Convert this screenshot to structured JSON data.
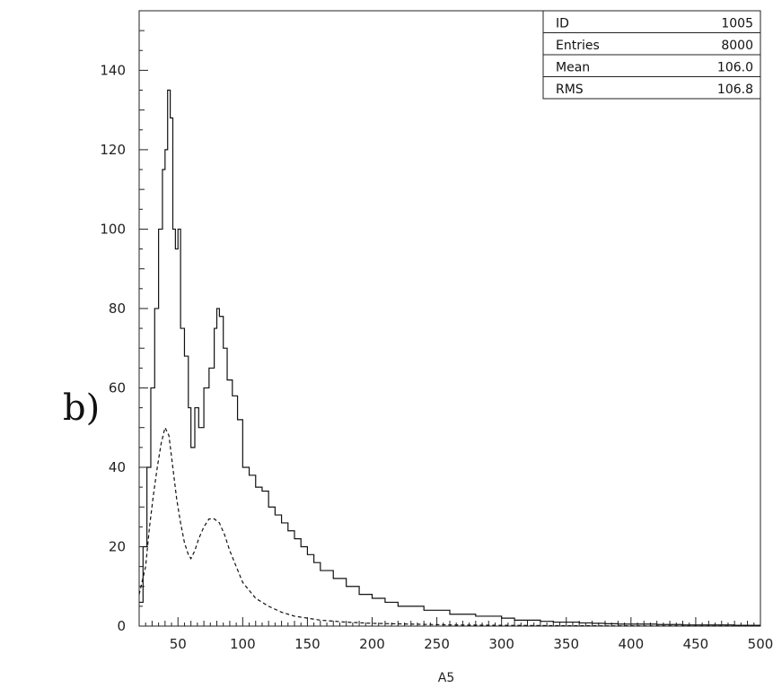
{
  "panel_label": "b)",
  "stats_box": [
    {
      "label": "ID",
      "value": "1005"
    },
    {
      "label": "Entries",
      "value": "8000"
    },
    {
      "label": "Mean",
      "value": "106.0"
    },
    {
      "label": "RMS",
      "value": "106.8"
    }
  ],
  "chart_data": {
    "type": "line",
    "title": "",
    "xlabel": "A5",
    "ylabel": "",
    "xlim": [
      20,
      500
    ],
    "ylim": [
      0,
      155
    ],
    "x_ticks": [
      50,
      100,
      150,
      200,
      250,
      300,
      350,
      400,
      450,
      500
    ],
    "y_ticks": [
      0,
      20,
      40,
      60,
      80,
      100,
      120,
      140
    ],
    "grid": false,
    "series": [
      {
        "style": "histogram-solid",
        "x": [
          20,
          23,
          26,
          29,
          32,
          35,
          38,
          40,
          42,
          44,
          46,
          48,
          50,
          52,
          55,
          58,
          60,
          63,
          66,
          70,
          74,
          78,
          80,
          82,
          85,
          88,
          92,
          96,
          100,
          105,
          110,
          115,
          120,
          125,
          130,
          135,
          140,
          145,
          150,
          155,
          160,
          170,
          180,
          190,
          200,
          210,
          220,
          230,
          240,
          250,
          260,
          270,
          280,
          290,
          300,
          310,
          320,
          330,
          340,
          350,
          360,
          370,
          380,
          390,
          400,
          420,
          440,
          460,
          480,
          500
        ],
        "y": [
          6,
          20,
          40,
          60,
          80,
          100,
          115,
          120,
          135,
          128,
          100,
          95,
          100,
          75,
          68,
          55,
          45,
          55,
          50,
          60,
          65,
          75,
          80,
          78,
          70,
          62,
          58,
          52,
          40,
          38,
          35,
          34,
          30,
          28,
          26,
          24,
          22,
          20,
          18,
          16,
          14,
          12,
          10,
          8,
          7,
          6,
          5,
          5,
          4,
          4,
          3,
          3,
          2.5,
          2.5,
          2,
          1.5,
          1.5,
          1.2,
          1,
          1,
          0.8,
          0.7,
          0.6,
          0.5,
          0.5,
          0.4,
          0.3,
          0.3,
          0.2,
          0.2
        ]
      },
      {
        "style": "dashed",
        "x": [
          20,
          25,
          28,
          31,
          34,
          37,
          40,
          43,
          46,
          49,
          52,
          55,
          58,
          60,
          63,
          66,
          70,
          74,
          78,
          82,
          86,
          90,
          95,
          100,
          110,
          120,
          130,
          140,
          150,
          160,
          180,
          200,
          230,
          260,
          300,
          350,
          400,
          450,
          500
        ],
        "y": [
          8,
          15,
          25,
          33,
          40,
          46,
          50,
          48,
          40,
          32,
          26,
          21,
          18,
          17,
          19,
          22,
          25,
          27,
          27,
          26,
          23,
          19,
          15,
          11,
          7,
          5,
          3.5,
          2.5,
          2,
          1.5,
          1,
          0.7,
          0.5,
          0.3,
          0.2,
          0.1,
          0.05,
          0.03,
          0.02
        ]
      }
    ]
  }
}
